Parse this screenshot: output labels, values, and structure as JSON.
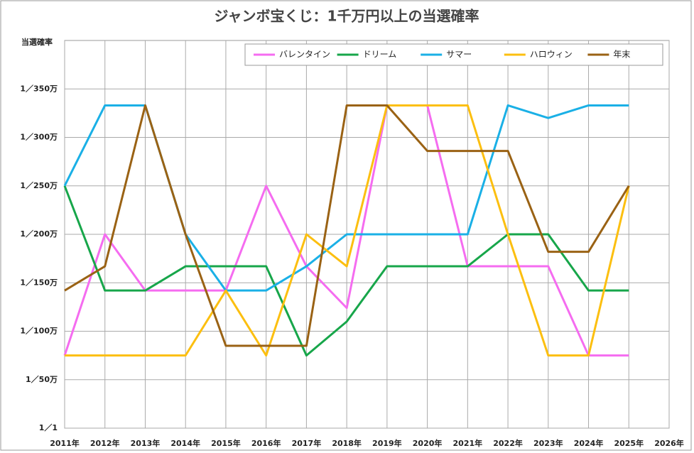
{
  "chart_data": {
    "type": "line",
    "title": "ジャンボ宝くじ：1千万円以上の当選確率",
    "y_label": "当選確率",
    "categories": [
      "2011年",
      "2012年",
      "2013年",
      "2014年",
      "2015年",
      "2016年",
      "2017年",
      "2018年",
      "2019年",
      "2020年",
      "2021年",
      "2022年",
      "2023年",
      "2024年",
      "2025年",
      "2026年"
    ],
    "ylim": [
      0,
      400
    ],
    "yticks": [
      {
        "value": 0,
        "label": "1／1"
      },
      {
        "value": 50,
        "label": "1／50万"
      },
      {
        "value": 100,
        "label": "1／100万"
      },
      {
        "value": 150,
        "label": "1／150万"
      },
      {
        "value": 200,
        "label": "1／200万"
      },
      {
        "value": 250,
        "label": "1／250万"
      },
      {
        "value": 300,
        "label": "1／300万"
      },
      {
        "value": 350,
        "label": "1／350万"
      }
    ],
    "grid": true,
    "legend": "top-right",
    "series": [
      {
        "name": "バレンタイン",
        "color": "#f56cf0",
        "values": [
          75,
          200,
          142,
          142,
          142,
          250,
          167,
          124,
          333,
          333,
          167,
          167,
          167,
          75,
          75,
          null
        ]
      },
      {
        "name": "ドリーム",
        "color": "#17a64a",
        "values": [
          250,
          142,
          142,
          167,
          167,
          167,
          75,
          110,
          167,
          167,
          167,
          200,
          200,
          142,
          142,
          null
        ]
      },
      {
        "name": "サマー",
        "color": "#1ab0e6",
        "values": [
          250,
          333,
          333,
          200,
          142,
          142,
          167,
          200,
          200,
          200,
          200,
          333,
          320,
          333,
          333,
          null
        ]
      },
      {
        "name": "ハロウィン",
        "color": "#fcbf10",
        "values": [
          75,
          75,
          75,
          75,
          142,
          75,
          200,
          167,
          333,
          333,
          333,
          200,
          75,
          75,
          250,
          null
        ]
      },
      {
        "name": "年末",
        "color": "#9a6214",
        "values": [
          142,
          167,
          333,
          200,
          85,
          85,
          85,
          333,
          333,
          286,
          286,
          286,
          182,
          182,
          250,
          null
        ]
      }
    ]
  }
}
